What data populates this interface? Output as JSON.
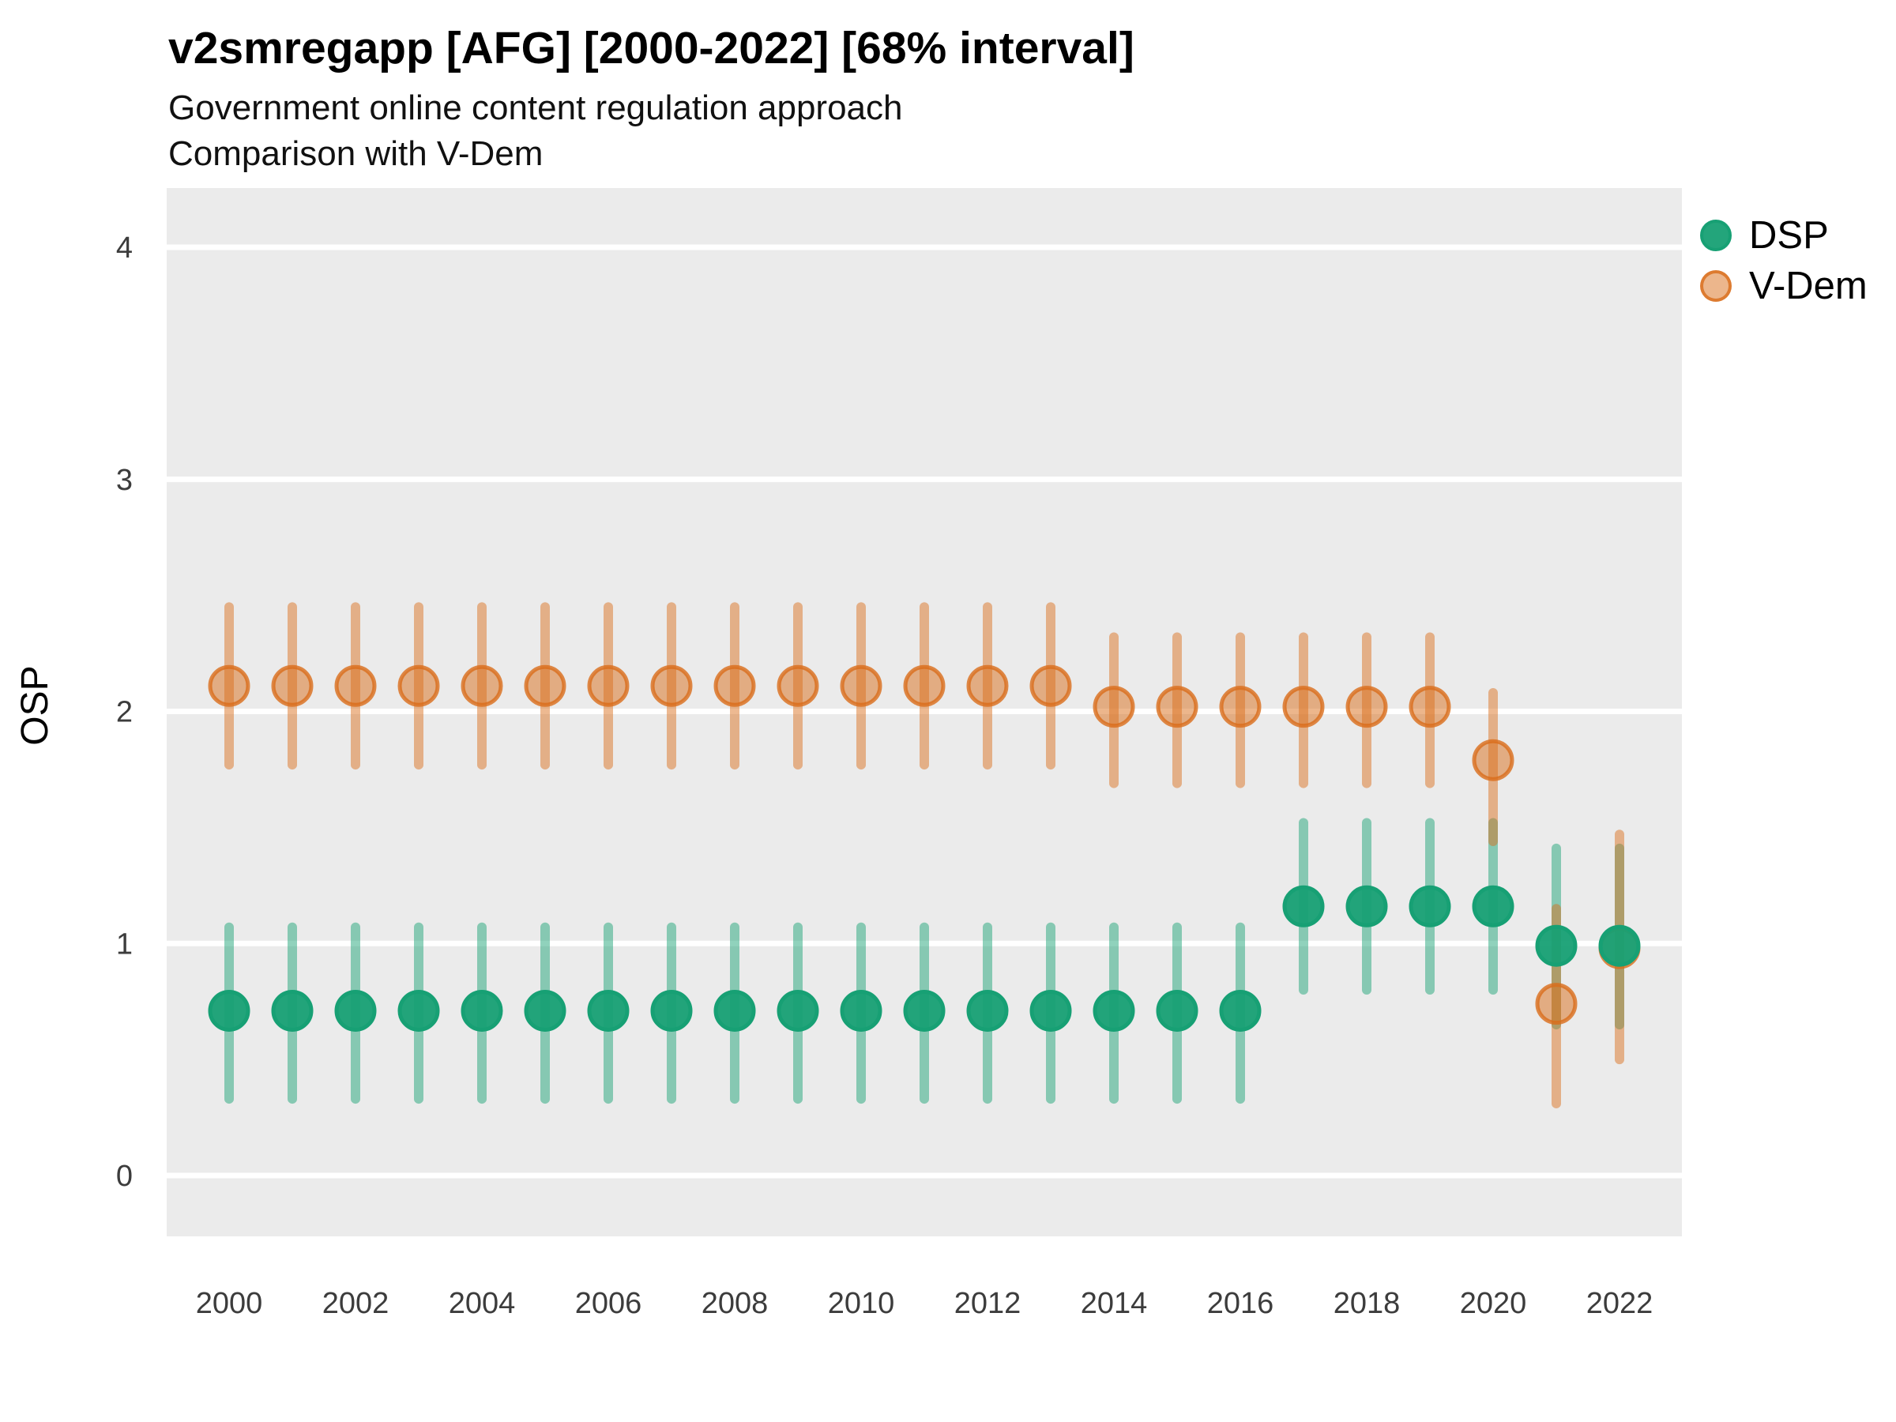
{
  "header": {
    "title": "v2smregapp [AFG] [2000-2022] [68% interval]",
    "subtitle": "Government online content regulation approach",
    "subtitle2": "Comparison with V-Dem"
  },
  "legend": {
    "position": "right",
    "items": [
      {
        "label": "DSP"
      },
      {
        "label": "V-Dem"
      }
    ]
  },
  "chart_data": {
    "type": "scatter",
    "title": "v2smregapp [AFG] [2000-2022] [68% interval]",
    "subtitle": "Government online content regulation approach",
    "subtitle2": "Comparison with V-Dem",
    "ylabel": "OSP",
    "xlabel": "",
    "interval": "68%",
    "grid": "horizontal-major-only",
    "panel_background": "#EBEBEB",
    "gridline_color": "#FFFFFF",
    "ylim": [
      -0.26,
      4.26
    ],
    "y_ticks": [
      0,
      1,
      2,
      3,
      4
    ],
    "x": [
      2000,
      2001,
      2002,
      2003,
      2004,
      2005,
      2006,
      2007,
      2008,
      2009,
      2010,
      2011,
      2012,
      2013,
      2014,
      2015,
      2016,
      2017,
      2018,
      2019,
      2020,
      2021,
      2022
    ],
    "x_tick_labels": [
      "2000",
      "2002",
      "2004",
      "2006",
      "2008",
      "2010",
      "2012",
      "2014",
      "2016",
      "2018",
      "2020",
      "2022"
    ],
    "series": [
      {
        "name": "DSP",
        "color": "#17A074",
        "est": [
          0.71,
          0.71,
          0.71,
          0.71,
          0.71,
          0.71,
          0.71,
          0.71,
          0.71,
          0.71,
          0.71,
          0.71,
          0.71,
          0.71,
          0.71,
          0.71,
          0.71,
          1.16,
          1.16,
          1.16,
          1.16,
          0.99,
          0.99
        ],
        "lo": [
          0.33,
          0.33,
          0.33,
          0.33,
          0.33,
          0.33,
          0.33,
          0.33,
          0.33,
          0.33,
          0.33,
          0.33,
          0.33,
          0.33,
          0.33,
          0.33,
          0.33,
          0.8,
          0.8,
          0.8,
          0.8,
          0.65,
          0.65
        ],
        "hi": [
          1.07,
          1.07,
          1.07,
          1.07,
          1.07,
          1.07,
          1.07,
          1.07,
          1.07,
          1.07,
          1.07,
          1.07,
          1.07,
          1.07,
          1.07,
          1.07,
          1.07,
          1.52,
          1.52,
          1.52,
          1.52,
          1.41,
          1.41
        ]
      },
      {
        "name": "V-Dem",
        "color": "#D96D1A",
        "est": [
          2.11,
          2.11,
          2.11,
          2.11,
          2.11,
          2.11,
          2.11,
          2.11,
          2.11,
          2.11,
          2.11,
          2.11,
          2.11,
          2.11,
          2.02,
          2.02,
          2.02,
          2.02,
          2.02,
          2.02,
          1.79,
          0.74,
          0.98
        ],
        "lo": [
          1.77,
          1.77,
          1.77,
          1.77,
          1.77,
          1.77,
          1.77,
          1.77,
          1.77,
          1.77,
          1.77,
          1.77,
          1.77,
          1.77,
          1.69,
          1.69,
          1.69,
          1.69,
          1.69,
          1.69,
          1.44,
          0.31,
          0.5
        ],
        "hi": [
          2.45,
          2.45,
          2.45,
          2.45,
          2.45,
          2.45,
          2.45,
          2.45,
          2.45,
          2.45,
          2.45,
          2.45,
          2.45,
          2.45,
          2.32,
          2.32,
          2.32,
          2.32,
          2.32,
          2.32,
          2.08,
          1.15,
          1.47
        ]
      }
    ]
  }
}
